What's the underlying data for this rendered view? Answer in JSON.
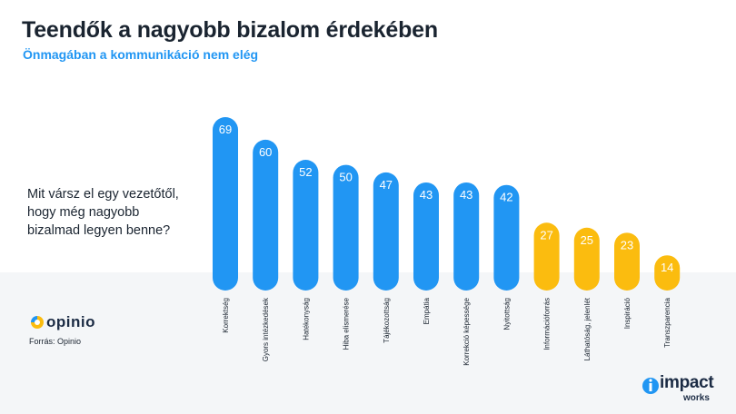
{
  "header": {
    "title": "Teendők a nagyobb bizalom érdekében",
    "subtitle": "Önmagában a kommunikáció nem elég"
  },
  "question": {
    "line1": "Mit vársz el egy vezetőtől,",
    "line2": "hogy még nagyobb",
    "line3": "bizalmad legyen benne?"
  },
  "footer": {
    "brand_logo": "opinio",
    "source": "Forrás: Opinio",
    "partner_logo_main": "impact",
    "partner_logo_sub": "works"
  },
  "colors": {
    "blue": "#2196f3",
    "yellow": "#fbbc0f",
    "title": "#1a2430",
    "subtitle": "#2196f3"
  },
  "chart_data": {
    "type": "bar",
    "categories": [
      "Korrektség",
      "Gyors intézkedések",
      "Hatékonyság",
      "Hiba elismerése",
      "Tájékozottság",
      "Empátia",
      "Korrekció képessége",
      "Nyitottság",
      "Információforrás",
      "Láthatóság, jelenlét",
      "Inspiráció",
      "Transzparencia"
    ],
    "values": [
      69,
      60,
      52,
      50,
      47,
      43,
      43,
      42,
      27,
      25,
      23,
      14
    ],
    "bar_colors": [
      "#2196f3",
      "#2196f3",
      "#2196f3",
      "#2196f3",
      "#2196f3",
      "#2196f3",
      "#2196f3",
      "#2196f3",
      "#fbbc0f",
      "#fbbc0f",
      "#fbbc0f",
      "#fbbc0f"
    ],
    "title": "",
    "xlabel": "",
    "ylabel": "",
    "ylim": [
      0,
      69
    ],
    "grid": false,
    "legend": "none"
  }
}
